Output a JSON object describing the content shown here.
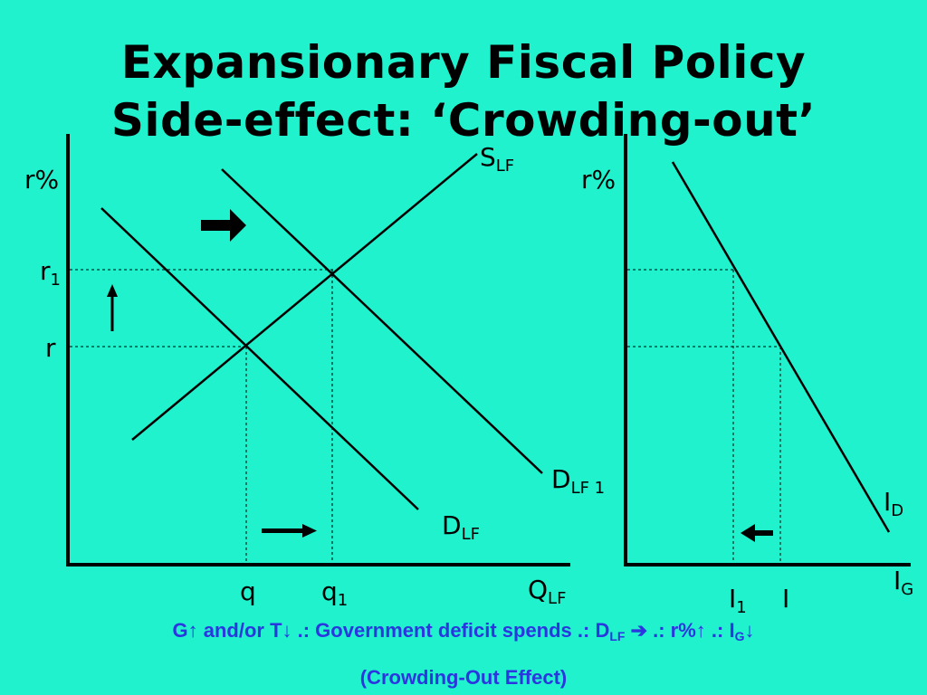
{
  "title": {
    "line1": "Expansionary Fiscal Policy",
    "line2": "Side-effect: ‘Crowding-out’"
  },
  "left_graph": {
    "y_axis_label": "r%",
    "r1_main": "r",
    "r1_sub": "1",
    "r_label": "r",
    "q_label": "q",
    "q1_main": "q",
    "q1_sub": "1",
    "x_axis_main": "Q",
    "x_axis_sub": "LF",
    "supply_main": "S",
    "supply_sub": "LF",
    "demand_main": "D",
    "demand_sub": "LF",
    "demand1_main": "D",
    "demand1_sub": "LF 1"
  },
  "right_graph": {
    "y_axis_label": "r%",
    "id_main": "I",
    "id_sub": "D",
    "ig_main": "I",
    "ig_sub": "G",
    "i1_main": "I",
    "i1_sub": "1",
    "i_label": "I"
  },
  "caption": {
    "line1_a": "G↑ and/or T↓ .: Government deficit spends .: D",
    "line1_sub1": "LF",
    "line1_b": " ➔ .: r%↑ .: I",
    "line1_sub2": "G",
    "line1_c": "↓",
    "line2": "(Crowding-Out Effect)"
  },
  "colors": {
    "background": "#1ff2cd",
    "lines": "#000000",
    "caption": "#2b35e0"
  }
}
